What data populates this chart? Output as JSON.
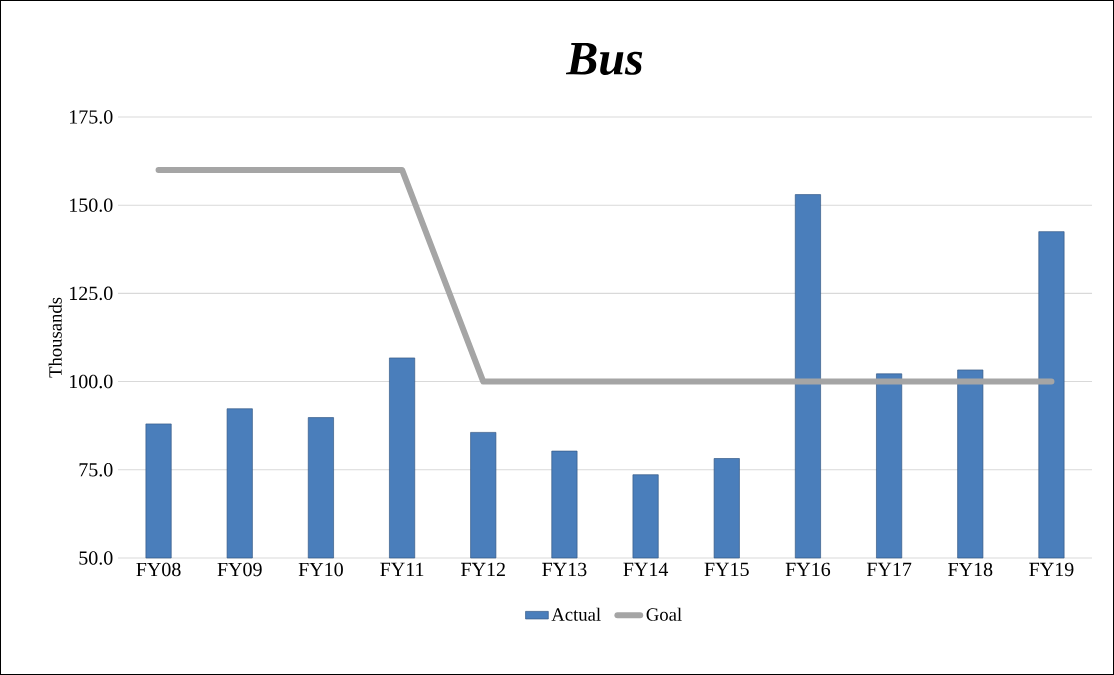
{
  "chart_data": {
    "type": "bar",
    "title": "Bus",
    "ylabel": "Thousands",
    "categories": [
      "FY08",
      "FY09",
      "FY10",
      "FY11",
      "FY12",
      "FY13",
      "FY14",
      "FY15",
      "FY16",
      "FY17",
      "FY18",
      "FY19"
    ],
    "series": [
      {
        "name": "Actual",
        "color": "#4a7ebb",
        "values": [
          88,
          92.3,
          89.8,
          106.7,
          85.6,
          80.3,
          73.6,
          78.2,
          153,
          102.2,
          103.3,
          142.5
        ]
      },
      {
        "name": "Goal",
        "type": "line",
        "color": "#a5a5a5",
        "values": [
          160,
          160,
          160,
          160,
          100,
          100,
          100,
          100,
          100,
          100,
          100,
          100
        ]
      }
    ],
    "ylim": [
      50,
      175
    ],
    "yticks": [
      {
        "value": 50,
        "label": "50.0"
      },
      {
        "value": 75,
        "label": "75.0"
      },
      {
        "value": 100,
        "label": "100.0"
      },
      {
        "value": 125,
        "label": "125.0"
      },
      {
        "value": 150,
        "label": "150.0"
      },
      {
        "value": 175,
        "label": "175.0"
      }
    ],
    "grid": "y",
    "legend": "bottom"
  }
}
